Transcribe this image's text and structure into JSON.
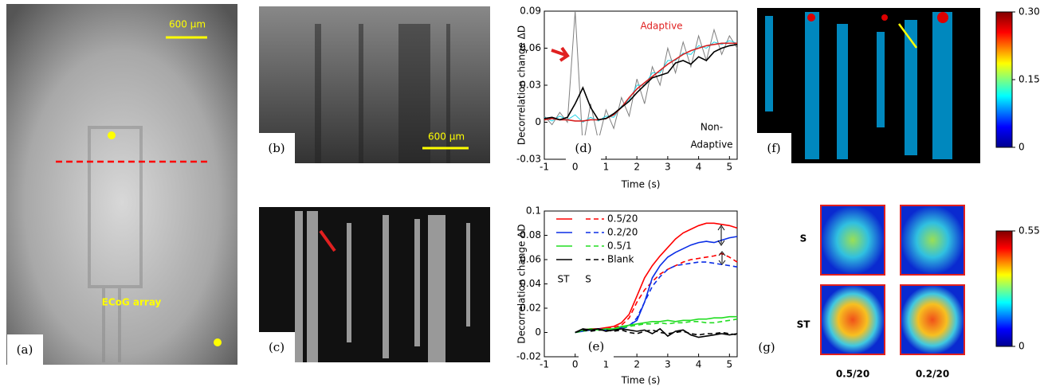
{
  "panels": {
    "a": {
      "label": "(a)",
      "scale": "600 µm",
      "caption": "ECoG array"
    },
    "b": {
      "label": "(b)",
      "scale": "600 µm"
    },
    "c": {
      "label": "(c)"
    },
    "f": {
      "label": "(f)",
      "colorbar": {
        "ylim": [
          0,
          0.3
        ],
        "yticks": [
          0,
          0.15,
          {
            "value": 0.3,
            "label": "0.30"
          }
        ]
      }
    },
    "g": {
      "label": "(g)",
      "rows": [
        "S",
        "ST"
      ],
      "columns": [
        "0.5/20",
        "0.2/20"
      ],
      "colorbar": {
        "ylim": [
          0,
          0.55
        ],
        "yticks": [
          0,
          0.55
        ]
      }
    }
  },
  "chart_data": [
    {
      "type": "line",
      "label": "(d)",
      "ylabel": "Decorrelation change ΔD",
      "xlabel": "Time (s)",
      "annotations": [
        "Adaptive",
        "Non-",
        "Adaptive"
      ],
      "x": [
        -1,
        -0.75,
        -0.5,
        -0.25,
        0,
        0.25,
        0.5,
        0.75,
        1,
        1.25,
        1.5,
        1.75,
        2,
        2.25,
        2.5,
        2.75,
        3,
        3.25,
        3.5,
        3.75,
        4,
        4.25,
        4.5,
        4.75,
        5,
        5.25
      ],
      "series": [
        {
          "color": "#7f7f7f",
          "values": [
            0.005,
            -0.002,
            0.008,
            0,
            0.09,
            -0.02,
            0.015,
            -0.015,
            0.01,
            -0.005,
            0.02,
            0.005,
            0.035,
            0.015,
            0.045,
            0.03,
            0.06,
            0.04,
            0.065,
            0.045,
            0.07,
            0.05,
            0.075,
            0.055,
            0.07,
            0.06
          ]
        },
        {
          "color": "#22d3e6",
          "values": [
            0.004,
            0.001,
            0.005,
            0.002,
            0.006,
            0,
            0.004,
            0.001,
            0.005,
            0.004,
            0.013,
            0.018,
            0.03,
            0.03,
            0.04,
            0.04,
            0.05,
            0.05,
            0.056,
            0.055,
            0.062,
            0.06,
            0.065,
            0.063,
            0.066,
            0.064
          ]
        },
        {
          "color": "#d62020",
          "values": [
            0.002,
            0.003,
            0.002,
            0.002,
            0.001,
            0.001,
            0.002,
            0.002,
            0.003,
            0.006,
            0.012,
            0.02,
            0.027,
            0.032,
            0.037,
            0.042,
            0.047,
            0.051,
            0.055,
            0.058,
            0.06,
            0.062,
            0.063,
            0.064,
            0.064,
            0.064
          ]
        },
        {
          "color": "#000000",
          "values": [
            0.003,
            0.004,
            0.002,
            0.004,
            0.015,
            0.028,
            0.012,
            0.002,
            0.003,
            0.007,
            0.012,
            0.017,
            0.024,
            0.03,
            0.036,
            0.038,
            0.04,
            0.048,
            0.05,
            0.047,
            0.053,
            0.05,
            0.057,
            0.06,
            0.062,
            0.063
          ]
        }
      ],
      "xlim": [
        -1,
        5.25
      ],
      "xticks": [
        -1,
        0,
        1,
        2,
        3,
        4,
        5
      ],
      "ylim": [
        -0.03,
        0.09
      ],
      "yticks": [
        -0.03,
        0,
        0.03,
        0.06,
        0.09
      ]
    },
    {
      "type": "line",
      "label": "(e)",
      "ylabel": "Decorrelation change ΔD",
      "xlabel": "Time (s)",
      "annotations": [
        "ST",
        "S"
      ],
      "x": [
        0,
        0.25,
        0.5,
        0.75,
        1,
        1.25,
        1.5,
        1.75,
        2,
        2.25,
        2.5,
        2.75,
        3,
        3.25,
        3.5,
        3.75,
        4,
        4.25,
        4.5,
        4.75,
        5,
        5.25
      ],
      "series": [
        {
          "name": "0.5/20",
          "color": "#ff0000",
          "values": [
            0,
            0.002,
            0.003,
            0.003,
            0.004,
            0.005,
            0.008,
            0.015,
            0.03,
            0.045,
            0.055,
            0.063,
            0.07,
            0.077,
            0.082,
            0.085,
            0.088,
            0.09,
            0.09,
            0.089,
            0.088,
            0.086
          ]
        },
        {
          "color": "#ff0000",
          "dashed": true,
          "values": [
            0,
            0.002,
            0.003,
            0.002,
            0.003,
            0.004,
            0.006,
            0.012,
            0.025,
            0.035,
            0.042,
            0.048,
            0.052,
            0.055,
            0.058,
            0.06,
            0.061,
            0.062,
            0.063,
            0.065,
            0.062,
            0.058
          ]
        },
        {
          "name": "0.2/20",
          "color": "#0a2de6",
          "values": [
            0,
            0.001,
            0.002,
            0.003,
            0.002,
            0.003,
            0.004,
            0.006,
            0.01,
            0.025,
            0.045,
            0.055,
            0.062,
            0.066,
            0.069,
            0.072,
            0.074,
            0.075,
            0.074,
            0.076,
            0.078,
            0.079
          ]
        },
        {
          "color": "#0a2de6",
          "dashed": true,
          "values": [
            0,
            0.001,
            0.002,
            0.002,
            0.003,
            0.002,
            0.003,
            0.005,
            0.012,
            0.025,
            0.038,
            0.046,
            0.052,
            0.055,
            0.056,
            0.057,
            0.058,
            0.058,
            0.057,
            0.056,
            0.055,
            0.054
          ]
        },
        {
          "name": "0.5/1",
          "color": "#22dd22",
          "values": [
            0,
            0.002,
            0.003,
            0.002,
            0.003,
            0.003,
            0.005,
            0.006,
            0.007,
            0.008,
            0.009,
            0.009,
            0.01,
            0.009,
            0.01,
            0.01,
            0.011,
            0.011,
            0.012,
            0.012,
            0.013,
            0.013
          ]
        },
        {
          "color": "#22dd22",
          "dashed": true,
          "values": [
            0,
            0.001,
            0.002,
            0.002,
            0.002,
            0.003,
            0.004,
            0.005,
            0.006,
            0.007,
            0.007,
            0.008,
            0.007,
            0.008,
            0.008,
            0.009,
            0.009,
            0.008,
            0.008,
            0.009,
            0.01,
            0.011
          ]
        },
        {
          "name": "Blank",
          "color": "#000000",
          "values": [
            0,
            0.003,
            0.002,
            0.003,
            0.001,
            0.002,
            0.003,
            0.002,
            0.001,
            0.002,
            -0.001,
            0.003,
            -0.003,
            0.001,
            0.002,
            -0.002,
            -0.004,
            -0.003,
            -0.002,
            -0.001,
            -0.002,
            -0.001
          ]
        },
        {
          "color": "#000000",
          "dashed": true,
          "values": [
            0,
            0.002,
            0.001,
            0.002,
            0.002,
            0.001,
            0.002,
            0,
            -0.001,
            0.001,
            0.002,
            0,
            -0.001,
            0,
            0.001,
            -0.001,
            -0.002,
            -0.001,
            -0.001,
            0,
            -0.001,
            -0.002
          ]
        }
      ],
      "xlim": [
        -1,
        5.25
      ],
      "xticks": [
        -1,
        0,
        1,
        2,
        3,
        4,
        5
      ],
      "ylim": [
        -0.02,
        0.1
      ],
      "yticks": [
        -0.02,
        0,
        0.02,
        0.04,
        0.06,
        0.08,
        0.1
      ]
    }
  ]
}
